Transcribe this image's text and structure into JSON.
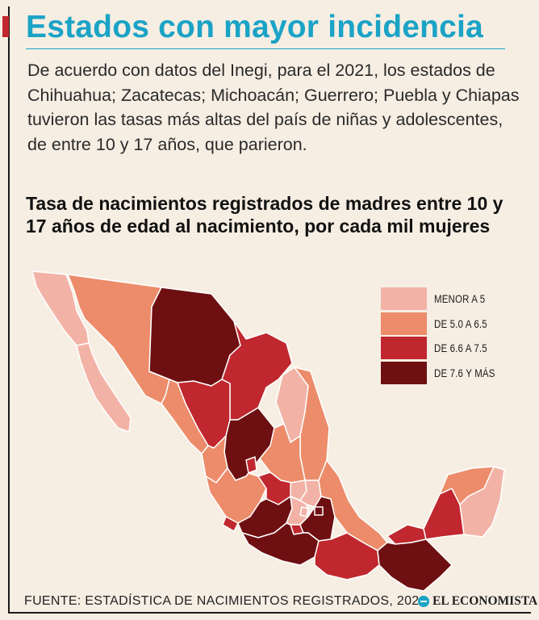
{
  "header": {
    "title": "Estados con mayor incidencia",
    "intro": "De acuerdo con datos del Inegi, para el 2021, los estados de Chihuahua; Zacatecas; Michoacán; Guerrero; Puebla y Chiapas tuvieron las tasas más altas del país de niñas y adolescentes, de entre 10 y 17 años, que parieron."
  },
  "chart_title": "Tasa de nacimientos registrados de madres entre 10 y 17 años de edad al nacimiento, por cada mil mujeres",
  "legend": [
    {
      "label": "MENOR A 5",
      "color": "#f2b3a6"
    },
    {
      "label": "DE 5.0 A 6.5",
      "color": "#ec8c6a"
    },
    {
      "label": "DE 6.6 A 7.5",
      "color": "#c0272e"
    },
    {
      "label": "DE 7.6 Y MÁS",
      "color": "#6e0f12"
    }
  ],
  "colors": {
    "accent": "#1aa3c6",
    "brand_red": "#c2272d",
    "background": "#f6eee3",
    "border": "#ffffff"
  },
  "footer": {
    "source": "FUENTE: ESTADÍSTICA DE NACIMIENTOS REGISTRADOS, 2021",
    "logo": "EL ECONOMISTA",
    "logo_icon": "el-economista-logo-icon"
  }
}
